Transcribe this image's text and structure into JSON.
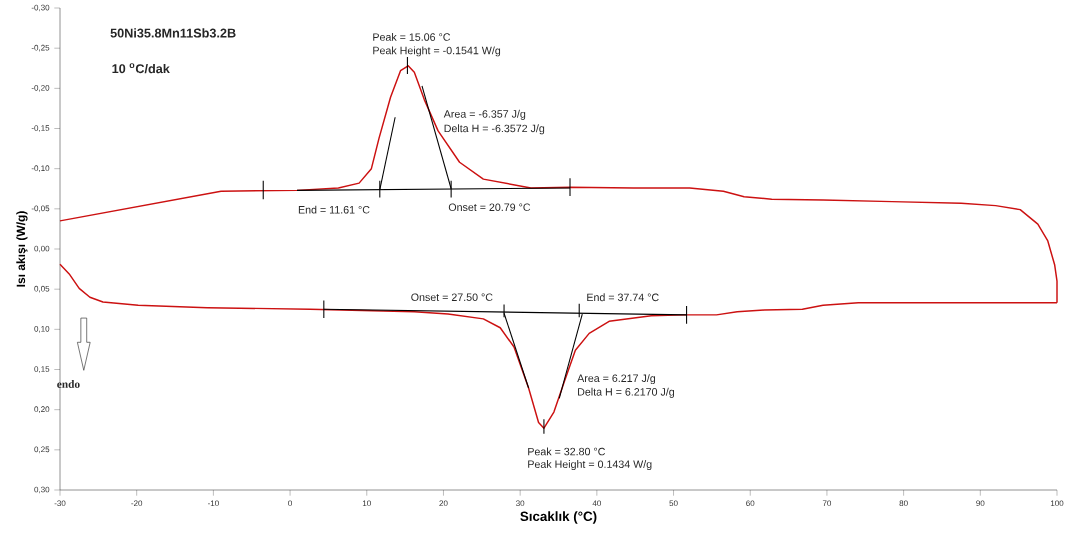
{
  "chart_data": {
    "type": "line",
    "xlabel": "Sıcaklık (°C)",
    "ylabel": "Isı akışı (W/g)",
    "xlim": [
      -30,
      100
    ],
    "xticks": [
      -30,
      -20,
      -10,
      0,
      10,
      20,
      30,
      40,
      50,
      60,
      70,
      80,
      90,
      100
    ],
    "ylim": [
      0.3,
      -0.3
    ],
    "yticks": [
      {
        "value": -0.3,
        "label": "-0,30"
      },
      {
        "value": -0.25,
        "label": "-0,25"
      },
      {
        "value": -0.2,
        "label": "-0,20"
      },
      {
        "value": -0.15,
        "label": "-0,15"
      },
      {
        "value": -0.1,
        "label": "-0,10"
      },
      {
        "value": -0.05,
        "label": "-0,05"
      },
      {
        "value": 0,
        "label": "0,00"
      },
      {
        "value": 0.05,
        "label": "0,05"
      },
      {
        "value": 0.1,
        "label": "0,10"
      },
      {
        "value": 0.15,
        "label": "0,15"
      },
      {
        "value": 0.2,
        "label": "0,20"
      },
      {
        "value": 0.25,
        "label": "0,25"
      },
      {
        "value": 0.3,
        "label": "0,30"
      }
    ],
    "series": [
      {
        "color": "#cc1111",
        "x": [
          100,
          100,
          99.7,
          98.8,
          97.5,
          95.2,
          92.0,
          87.5,
          78.5,
          69.5,
          62.8,
          59.2,
          56.5,
          52.1,
          44.8,
          36.5,
          31.4,
          25.2,
          22.1,
          19.3,
          17.5,
          16.2,
          15.4,
          14.4,
          13.1,
          11.6,
          10.6,
          9.0,
          6.3,
          0.9,
          -9.0,
          -30
        ],
        "values": [
          0.067,
          0.04,
          0.02,
          -0.01,
          -0.031,
          -0.049,
          -0.054,
          -0.057,
          -0.059,
          -0.061,
          -0.062,
          -0.065,
          -0.072,
          -0.076,
          -0.076,
          -0.077,
          -0.076,
          -0.087,
          -0.108,
          -0.147,
          -0.186,
          -0.22,
          -0.228,
          -0.222,
          -0.189,
          -0.138,
          -0.1,
          -0.082,
          -0.076,
          -0.073,
          -0.072,
          -0.035
        ]
      },
      {
        "color": "#cc1111",
        "x": [
          -30,
          -28.8,
          -27.5,
          -26.1,
          -24.4,
          -19.8,
          -10.8,
          2.6,
          16.2,
          20.6,
          25.2,
          27.4,
          29.2,
          31.1,
          32.4,
          33.1,
          34.4,
          35.8,
          37.2,
          39.0,
          41.6,
          47.1,
          51.5,
          55.6,
          58.3,
          61.8,
          66.8,
          69.5,
          74.1,
          80.8,
          100
        ],
        "values": [
          0.019,
          0.031,
          0.049,
          0.06,
          0.066,
          0.07,
          0.073,
          0.075,
          0.078,
          0.081,
          0.087,
          0.098,
          0.122,
          0.173,
          0.216,
          0.223,
          0.203,
          0.164,
          0.126,
          0.105,
          0.09,
          0.083,
          0.082,
          0.082,
          0.078,
          0.076,
          0.075,
          0.07,
          0.067,
          0.067,
          0.067
        ]
      },
      {
        "type": "line",
        "color": "#000000",
        "x": [
          0.9,
          36.5
        ],
        "values": [
          -0.073,
          -0.076
        ]
      },
      {
        "type": "line",
        "color": "#000000",
        "x": [
          11.7,
          13.7
        ],
        "values": [
          -0.074,
          -0.164
        ]
      },
      {
        "type": "line",
        "color": "#000000",
        "x": [
          17.2,
          21.0
        ],
        "values": [
          -0.203,
          -0.075
        ]
      },
      {
        "type": "line",
        "color": "#000000",
        "x": [
          -3.5,
          -3.5
        ],
        "values": [
          -0.085,
          -0.062
        ]
      },
      {
        "type": "line",
        "color": "#000000",
        "x": [
          11.7,
          11.7
        ],
        "values": [
          -0.085,
          -0.064
        ]
      },
      {
        "type": "line",
        "color": "#000000",
        "x": [
          21.0,
          21.0
        ],
        "values": [
          -0.085,
          -0.064
        ]
      },
      {
        "type": "line",
        "color": "#000000",
        "x": [
          36.5,
          36.5
        ],
        "values": [
          -0.088,
          -0.066
        ]
      },
      {
        "type": "line",
        "color": "#000000",
        "x": [
          15.3,
          15.3
        ],
        "values": [
          -0.239,
          -0.218
        ]
      },
      {
        "type": "line",
        "color": "#000000",
        "x": [
          4.4,
          51.7
        ],
        "values": [
          0.075,
          0.082
        ]
      },
      {
        "type": "line",
        "color": "#000000",
        "x": [
          27.9,
          31.1
        ],
        "values": [
          0.08,
          0.173
        ]
      },
      {
        "type": "line",
        "color": "#000000",
        "x": [
          35.1,
          38.1
        ],
        "values": [
          0.186,
          0.081
        ]
      },
      {
        "type": "line",
        "color": "#000000",
        "x": [
          4.4,
          4.4
        ],
        "values": [
          0.064,
          0.086
        ]
      },
      {
        "type": "line",
        "color": "#000000",
        "x": [
          51.7,
          51.7
        ],
        "values": [
          0.071,
          0.093
        ]
      },
      {
        "type": "line",
        "color": "#000000",
        "x": [
          27.9,
          27.9
        ],
        "values": [
          0.069,
          0.085
        ]
      },
      {
        "type": "line",
        "color": "#000000",
        "x": [
          37.7,
          37.7
        ],
        "values": [
          0.068,
          0.085
        ]
      },
      {
        "type": "line",
        "color": "#000000",
        "x": [
          33.1,
          33.1
        ],
        "values": [
          0.212,
          0.23
        ]
      }
    ],
    "annotations": [
      "50Ni35.8Mn11Sb3.2B",
      "10 $^{o}$C/dak",
      "Peak = 15.06 °C",
      "Peak Height = -0.1541 W/g",
      "Area = -6.357 J/g",
      "Delta H = -6.3572 J/g",
      "End = 11.61 °C",
      "Onset = 20.79 °C",
      "Onset = 27.50 °C",
      "End = 37.74 °C",
      "Area = 6.217 J/g",
      "Delta H = 6.2170 J/g",
      "Peak = 32.80 °C",
      "Peak Height = 0.1434 W/g",
      "endo"
    ]
  }
}
